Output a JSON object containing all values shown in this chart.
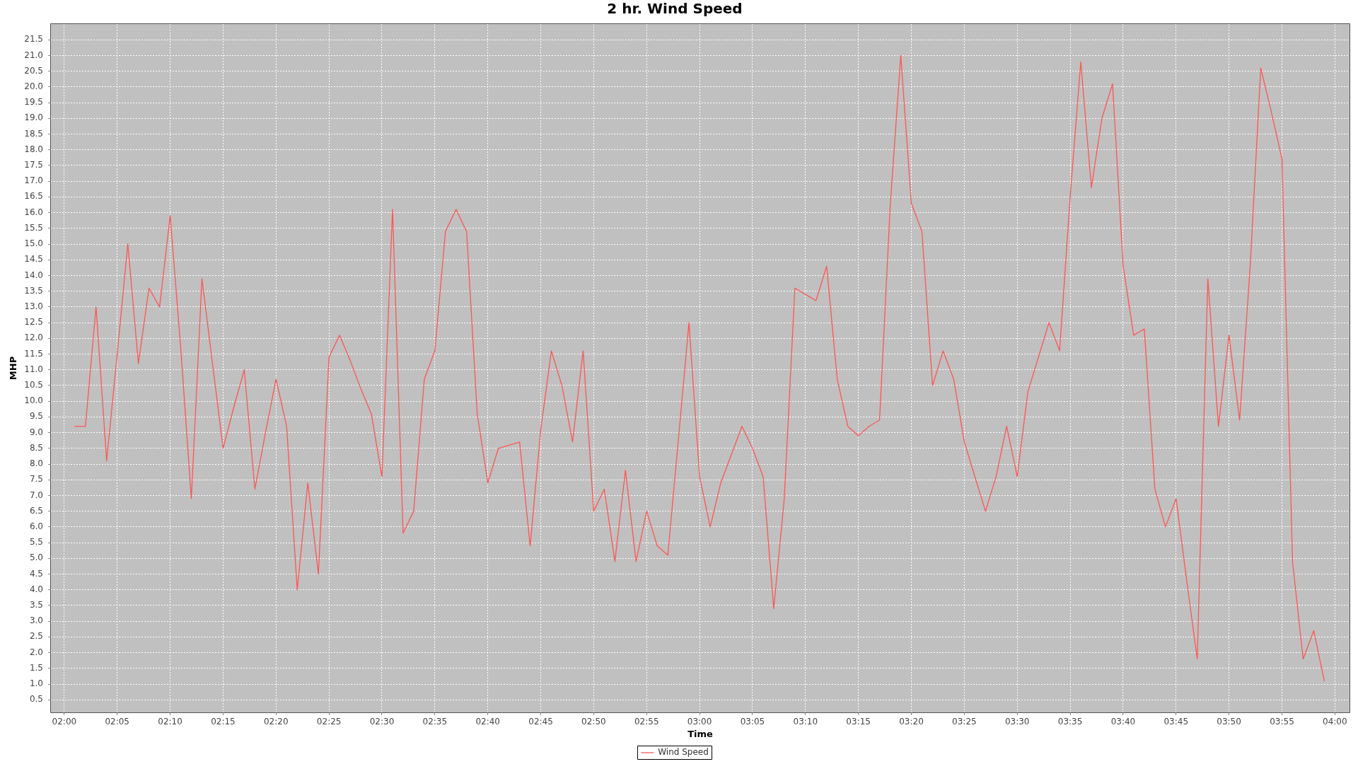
{
  "chart_data": {
    "type": "line",
    "title": "2 hr. Wind Speed",
    "xlabel": "Time",
    "ylabel": "MHP",
    "x": [
      2.0167,
      2.0333,
      2.05,
      2.0667,
      2.0833,
      2.1,
      2.1167,
      2.1333,
      2.15,
      2.1667,
      2.1833,
      2.2,
      2.2167,
      2.2333,
      2.25,
      2.2667,
      2.2833,
      2.3,
      2.3167,
      2.3333,
      2.35,
      2.3667,
      2.3833,
      2.4,
      2.4167,
      2.4333,
      2.45,
      2.4667,
      2.4833,
      2.5,
      2.5167,
      2.5333,
      2.55,
      2.5667,
      2.5833,
      2.6,
      2.6167,
      2.6333,
      2.65,
      2.6667,
      2.6833,
      2.7,
      2.7167,
      2.7333,
      2.75,
      2.7667,
      2.7833,
      2.8,
      2.8167,
      2.8333,
      2.85,
      2.8667,
      2.8833,
      2.9,
      2.9167,
      2.9333,
      2.95,
      2.9667,
      2.9833,
      3,
      3.0167,
      3.0333,
      3.05,
      3.0667,
      3.0833,
      3.1,
      3.1167,
      3.1333,
      3.15,
      3.1667,
      3.1833,
      3.2,
      3.2167,
      3.2333,
      3.25,
      3.2667,
      3.2833,
      3.3,
      3.3167,
      3.3333,
      3.35,
      3.3667,
      3.3833,
      3.4,
      3.4167,
      3.4333,
      3.45,
      3.4667,
      3.4833,
      3.5,
      3.5167,
      3.5333,
      3.55,
      3.5667,
      3.5833,
      3.6,
      3.6167,
      3.6333,
      3.65,
      3.6667,
      3.6833,
      3.7,
      3.7167,
      3.7333,
      3.75,
      3.7667,
      3.7833,
      3.8,
      3.8167,
      3.8333,
      3.85,
      3.8667,
      3.8833,
      3.9,
      3.9167,
      3.9333,
      3.95,
      3.9667,
      3.9833
    ],
    "series": [
      {
        "name": "Wind Speed",
        "color": "#ff5555",
        "values": [
          9.2,
          9.2,
          13.0,
          8.1,
          11.5,
          15.0,
          11.2,
          13.6,
          13.0,
          15.9,
          11.7,
          6.9,
          13.9,
          11.2,
          8.5,
          9.8,
          11.0,
          7.2,
          9.0,
          10.7,
          9.2,
          4.0,
          7.4,
          4.5,
          11.4,
          12.1,
          11.3,
          10.4,
          9.6,
          7.6,
          16.1,
          5.8,
          6.5,
          10.7,
          11.6,
          15.4,
          16.1,
          15.4,
          9.6,
          7.4,
          8.5,
          8.6,
          8.7,
          5.4,
          9.1,
          11.6,
          10.5,
          8.7,
          11.6,
          6.5,
          7.2,
          4.9,
          7.8,
          4.9,
          6.5,
          5.4,
          5.1,
          8.8,
          12.5,
          7.6,
          6.0,
          7.4,
          8.3,
          9.2,
          8.5,
          7.6,
          3.4,
          6.9,
          13.6,
          13.4,
          13.2,
          14.3,
          10.7,
          9.2,
          8.9,
          9.2,
          9.4,
          16.2,
          21.0,
          16.3,
          15.4,
          10.5,
          11.6,
          10.7,
          8.7,
          7.6,
          6.5,
          7.6,
          9.2,
          7.6,
          10.3,
          11.4,
          12.5,
          11.6,
          16.5,
          20.8,
          16.8,
          19.0,
          20.1,
          14.3,
          12.1,
          12.3,
          7.2,
          6.0,
          6.9,
          4.3,
          1.8,
          13.9,
          9.2,
          12.1,
          9.4,
          14.3,
          20.6,
          19.2,
          17.7,
          4.9,
          1.8,
          2.7,
          1.1
        ]
      }
    ],
    "xlim": [
      1.979,
      4.023
    ],
    "xticks": [
      {
        "value": 2,
        "label": "02:00"
      },
      {
        "value": 2.0833,
        "label": "02:05"
      },
      {
        "value": 2.1667,
        "label": "02:10"
      },
      {
        "value": 2.25,
        "label": "02:15"
      },
      {
        "value": 2.3333,
        "label": "02:20"
      },
      {
        "value": 2.4167,
        "label": "02:25"
      },
      {
        "value": 2.5,
        "label": "02:30"
      },
      {
        "value": 2.5833,
        "label": "02:35"
      },
      {
        "value": 2.6667,
        "label": "02:40"
      },
      {
        "value": 2.75,
        "label": "02:45"
      },
      {
        "value": 2.8333,
        "label": "02:50"
      },
      {
        "value": 2.9167,
        "label": "02:55"
      },
      {
        "value": 3,
        "label": "03:00"
      },
      {
        "value": 3.0833,
        "label": "03:05"
      },
      {
        "value": 3.1667,
        "label": "03:10"
      },
      {
        "value": 3.25,
        "label": "03:15"
      },
      {
        "value": 3.3333,
        "label": "03:20"
      },
      {
        "value": 3.4167,
        "label": "03:25"
      },
      {
        "value": 3.5,
        "label": "03:30"
      },
      {
        "value": 3.5833,
        "label": "03:35"
      },
      {
        "value": 3.6667,
        "label": "03:40"
      },
      {
        "value": 3.75,
        "label": "03:45"
      },
      {
        "value": 3.8333,
        "label": "03:50"
      },
      {
        "value": 3.9167,
        "label": "03:55"
      },
      {
        "value": 4,
        "label": "04:00"
      }
    ],
    "ylim": [
      0.1,
      22.0
    ],
    "yticks": [
      0.5,
      {
        "value": 1,
        "label": "1.0"
      },
      1.5,
      {
        "value": 2,
        "label": "2.0"
      },
      2.5,
      {
        "value": 3,
        "label": "3.0"
      },
      3.5,
      {
        "value": 4,
        "label": "4.0"
      },
      4.5,
      {
        "value": 5,
        "label": "5.0"
      },
      5.5,
      {
        "value": 6,
        "label": "6.0"
      },
      6.5,
      {
        "value": 7,
        "label": "7.0"
      },
      7.5,
      {
        "value": 8,
        "label": "8.0"
      },
      8.5,
      {
        "value": 9,
        "label": "9.0"
      },
      9.5,
      {
        "value": 10,
        "label": "10.0"
      },
      10.5,
      {
        "value": 11,
        "label": "11.0"
      },
      11.5,
      {
        "value": 12,
        "label": "12.0"
      },
      12.5,
      {
        "value": 13,
        "label": "13.0"
      },
      13.5,
      {
        "value": 14,
        "label": "14.0"
      },
      14.5,
      {
        "value": 15,
        "label": "15.0"
      },
      15.5,
      {
        "value": 16,
        "label": "16.0"
      },
      16.5,
      {
        "value": 17,
        "label": "17.0"
      },
      17.5,
      {
        "value": 18,
        "label": "18.0"
      },
      18.5,
      {
        "value": 19,
        "label": "19.0"
      },
      19.5,
      {
        "value": 20,
        "label": "20.0"
      },
      20.5,
      {
        "value": 21,
        "label": "21.0"
      },
      21.5
    ],
    "grid": true,
    "legend": "bottom"
  }
}
